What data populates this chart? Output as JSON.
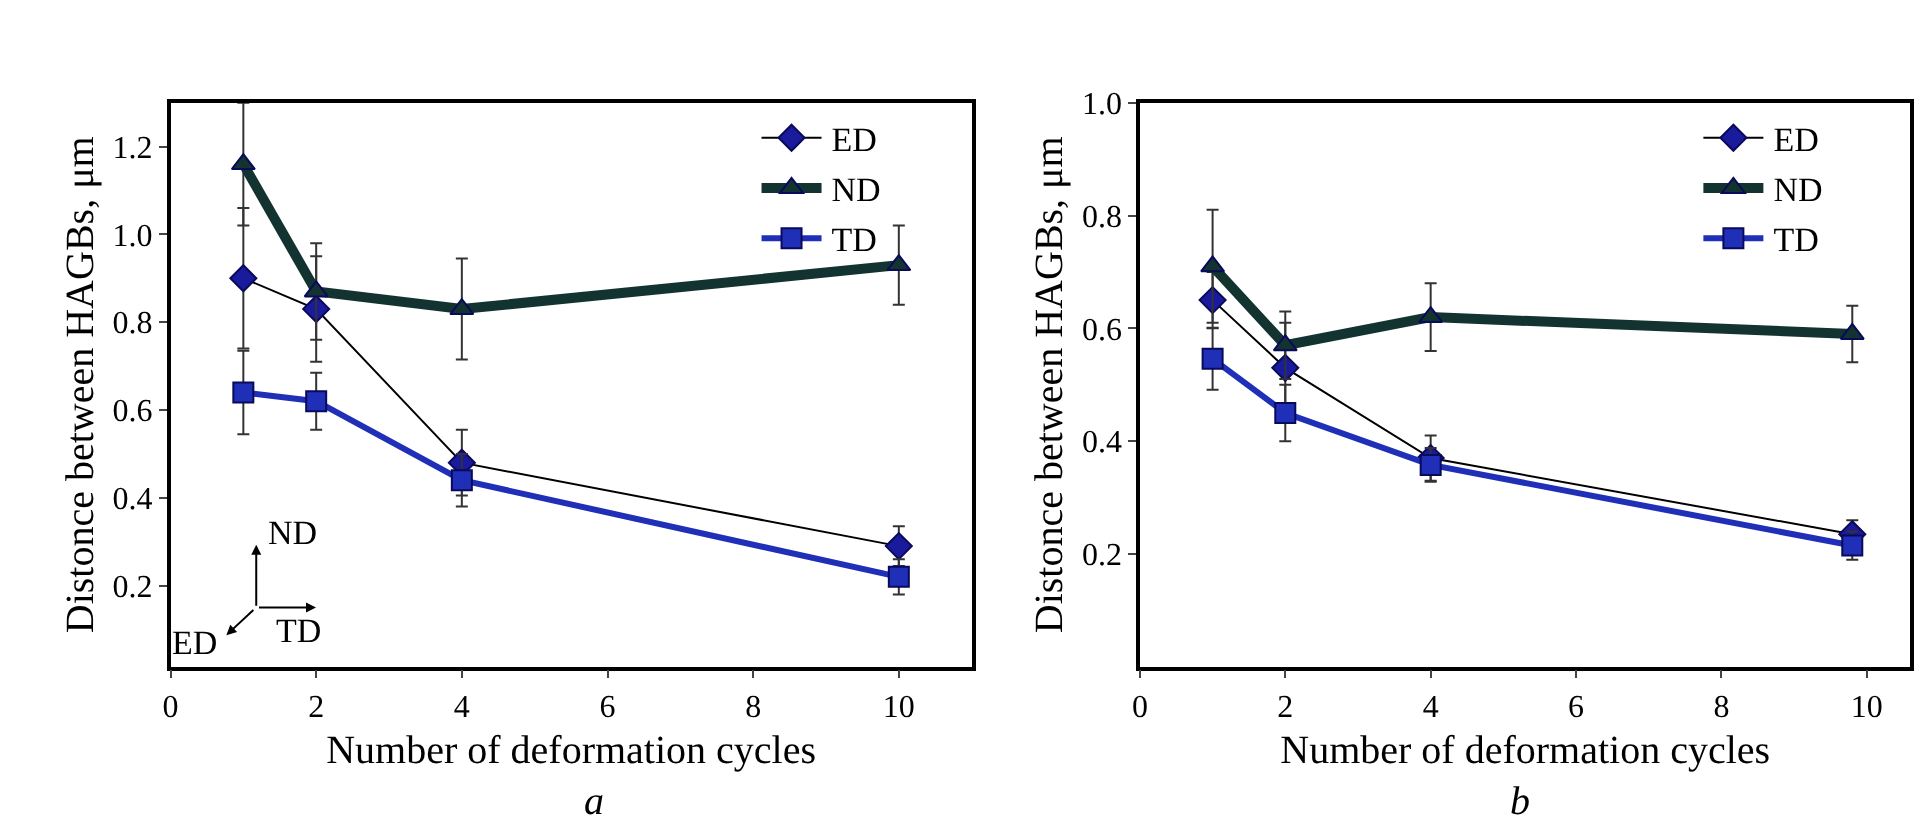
{
  "chart_data": [
    {
      "type": "line",
      "xlabel": "Number of deformation cycles",
      "ylabel": "Distonce between HAGBs, μm",
      "xlim": [
        0,
        11
      ],
      "xticks": [
        0,
        2,
        4,
        6,
        8,
        10
      ],
      "ylim": [
        0.015,
        1.3
      ],
      "yticks": [
        0.2,
        0.4,
        0.6,
        0.8,
        {
          "value": 1.0,
          "label": "1.0"
        },
        1.2
      ],
      "legend": "top right",
      "x": [
        1,
        2,
        4,
        10
      ],
      "series": [
        {
          "name": "ED",
          "color": "#1a1a9c",
          "marker": "diamond",
          "values": [
            0.9,
            0.83,
            0.48,
            0.29
          ],
          "errors": [
            0.16,
            0.12,
            0.075,
            0.045
          ]
        },
        {
          "name": "ND",
          "color": "#123330",
          "marker": "triangle",
          "values": [
            1.16,
            0.87,
            0.83,
            0.93
          ],
          "errors": [
            0.14,
            0.11,
            0.115,
            0.09
          ]
        },
        {
          "name": "TD",
          "color": "#1f2fb8",
          "marker": "square",
          "values": [
            0.64,
            0.62,
            0.44,
            0.22
          ],
          "errors": [
            0.095,
            0.065,
            0.06,
            0.04
          ]
        }
      ],
      "annotations": [
        "ND",
        "TD",
        "ED",
        "a"
      ]
    },
    {
      "type": "line",
      "xlabel": "Number of deformation cycles",
      "ylabel": "Distonce between HAGBs, μm",
      "xlim": [
        0,
        10.6
      ],
      "xticks": [
        0,
        2,
        4,
        6,
        8,
        10
      ],
      "ylim": [
        0,
        1.0
      ],
      "yticks": [
        0.2,
        0.4,
        0.6,
        0.8,
        {
          "value": 1.0,
          "label": "1.0"
        }
      ],
      "legend": "top right",
      "x": [
        1,
        2,
        4,
        9.8
      ],
      "series": [
        {
          "name": "ED",
          "color": "#1a1a9c",
          "marker": "diamond",
          "values": [
            0.65,
            0.53,
            0.37,
            0.235
          ],
          "errors": [
            0.05,
            0.08,
            0.04,
            0.025
          ]
        },
        {
          "name": "ND",
          "color": "#123330",
          "marker": "triangle",
          "values": [
            0.71,
            0.57,
            0.62,
            0.59
          ],
          "errors": [
            0.1,
            0.06,
            0.06,
            0.05
          ]
        },
        {
          "name": "TD",
          "color": "#1f2fb8",
          "marker": "square",
          "values": [
            0.546,
            0.45,
            0.358,
            0.215
          ],
          "errors": [
            0.055,
            0.05,
            0.03,
            0.025
          ]
        }
      ],
      "annotations": [
        "b"
      ]
    }
  ]
}
